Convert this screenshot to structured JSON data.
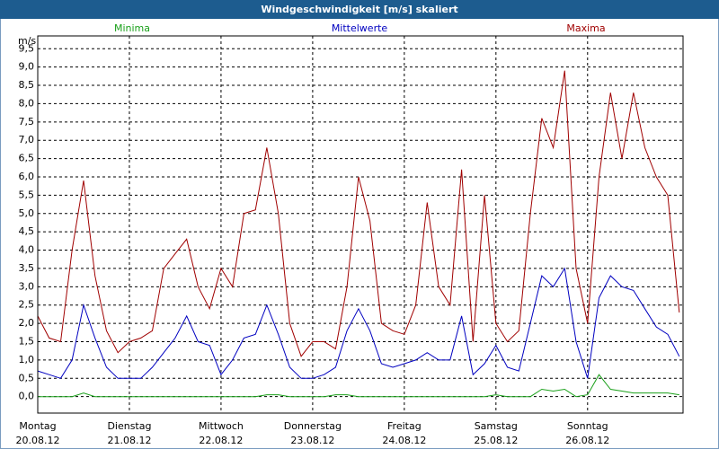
{
  "chart_data": {
    "type": "line",
    "title": "Windgeschwindigkeit [m/s] skaliert",
    "y_label": "m/s",
    "x": [
      0,
      3,
      6,
      9,
      12,
      15,
      18,
      21,
      24,
      27,
      30,
      33,
      36,
      39,
      42,
      45,
      48,
      51,
      54,
      57,
      60,
      63,
      66,
      69,
      72,
      75,
      78,
      81,
      84,
      87,
      90,
      93,
      96,
      99,
      102,
      105,
      108,
      111,
      114,
      117,
      120,
      123,
      126,
      129,
      132,
      135,
      138,
      141,
      144,
      147,
      150,
      153,
      156,
      159,
      162,
      165,
      168
    ],
    "xlim": [
      0,
      169
    ],
    "xticks": [
      {
        "value": 0,
        "label": "Montag",
        "sublabel": "20.08.12"
      },
      {
        "value": 24,
        "label": "Dienstag",
        "sublabel": "21.08.12"
      },
      {
        "value": 48,
        "label": "Mittwoch",
        "sublabel": "22.08.12"
      },
      {
        "value": 72,
        "label": "Donnerstag",
        "sublabel": "23.08.12"
      },
      {
        "value": 96,
        "label": "Freitag",
        "sublabel": "24.08.12"
      },
      {
        "value": 120,
        "label": "Samstag",
        "sublabel": "25.08.12"
      },
      {
        "value": 144,
        "label": "Sonntag",
        "sublabel": "26.08.12"
      }
    ],
    "ylim": [
      -0.45,
      9.85
    ],
    "yticks": [
      {
        "value": 0,
        "label": "0,0"
      },
      {
        "value": 0.5,
        "label": "0,5"
      },
      {
        "value": 1,
        "label": "1,0"
      },
      {
        "value": 1.5,
        "label": "1,5"
      },
      {
        "value": 2,
        "label": "2,0"
      },
      {
        "value": 2.5,
        "label": "2,5"
      },
      {
        "value": 3,
        "label": "3,0"
      },
      {
        "value": 3.5,
        "label": "3,5"
      },
      {
        "value": 4,
        "label": "4,0"
      },
      {
        "value": 4.5,
        "label": "4,5"
      },
      {
        "value": 5,
        "label": "5,0"
      },
      {
        "value": 5.5,
        "label": "5,5"
      },
      {
        "value": 6,
        "label": "6,0"
      },
      {
        "value": 6.5,
        "label": "6,5"
      },
      {
        "value": 7,
        "label": "7,0"
      },
      {
        "value": 7.5,
        "label": "7,5"
      },
      {
        "value": 8,
        "label": "8,0"
      },
      {
        "value": 8.5,
        "label": "8,5"
      },
      {
        "value": 9,
        "label": "9,0"
      },
      {
        "value": 9.5,
        "label": "9,5"
      }
    ],
    "grid": true,
    "series": [
      {
        "name": "Minima",
        "color": "#1aa01a",
        "values": [
          0,
          0,
          0,
          0,
          0.1,
          0,
          0,
          0,
          0,
          0,
          0,
          0,
          0,
          0,
          0,
          0,
          0,
          0,
          0,
          0,
          0.05,
          0.05,
          0,
          0,
          0,
          0,
          0.05,
          0.05,
          0,
          0,
          0,
          0,
          0,
          0,
          0,
          0,
          0,
          0,
          0,
          0,
          0.05,
          0,
          0,
          0,
          0.2,
          0.15,
          0.2,
          0,
          0.05,
          0.6,
          0.2,
          0.15,
          0.1,
          0.1,
          0.1,
          0.1,
          0.05
        ]
      },
      {
        "name": "Mittelwerte",
        "color": "#0000c0",
        "values": [
          0.7,
          0.6,
          0.5,
          1.0,
          2.5,
          1.6,
          0.8,
          0.5,
          0.5,
          0.5,
          0.8,
          1.2,
          1.6,
          2.2,
          1.5,
          1.4,
          0.6,
          1.0,
          1.6,
          1.7,
          2.5,
          1.7,
          0.8,
          0.5,
          0.5,
          0.6,
          0.8,
          1.8,
          2.4,
          1.8,
          0.9,
          0.8,
          0.9,
          1.0,
          1.2,
          1.0,
          1.0,
          2.2,
          0.6,
          0.9,
          1.4,
          0.8,
          0.7,
          2.0,
          3.3,
          3.0,
          3.5,
          1.5,
          0.5,
          2.7,
          3.3,
          3.0,
          2.9,
          2.4,
          1.9,
          1.7,
          1.1
        ]
      },
      {
        "name": "Maxima",
        "color": "#a00000",
        "values": [
          2.2,
          1.6,
          1.5,
          4.0,
          5.9,
          3.3,
          1.8,
          1.2,
          1.5,
          1.6,
          1.8,
          3.5,
          3.9,
          4.3,
          3.0,
          2.4,
          3.5,
          3.0,
          5.0,
          5.1,
          6.8,
          5.0,
          2.0,
          1.1,
          1.5,
          1.5,
          1.3,
          3.0,
          6.0,
          4.8,
          2.0,
          1.8,
          1.7,
          2.5,
          5.3,
          3.0,
          2.5,
          6.2,
          1.5,
          5.5,
          2.0,
          1.5,
          1.8,
          5.0,
          7.6,
          6.8,
          8.9,
          3.5,
          2.0,
          6.0,
          8.3,
          6.5,
          8.3,
          6.8,
          6.0,
          5.5,
          2.3
        ]
      }
    ]
  }
}
